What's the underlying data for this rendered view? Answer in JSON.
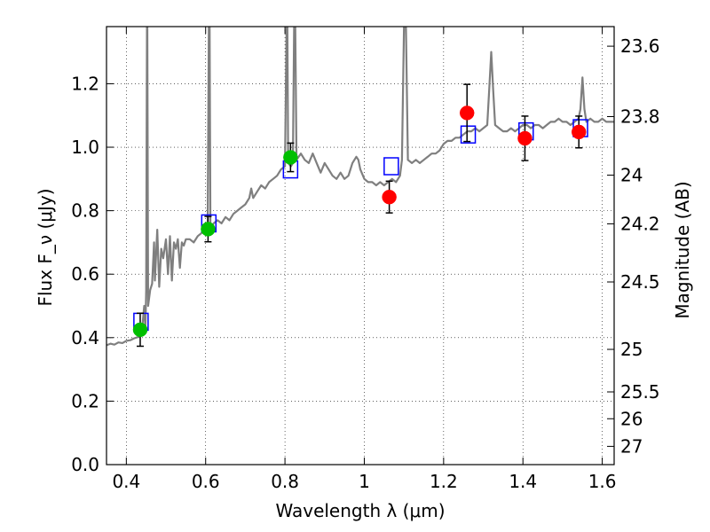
{
  "chart_data": {
    "type": "scatter",
    "xlabel": "Wavelength λ (μm)",
    "ylabel": "Flux F_ν (μJy)",
    "y2label": "Magnitude (AB)",
    "xlim": [
      0.35,
      1.63
    ],
    "ylim": [
      0.0,
      1.38
    ],
    "xticks": [
      {
        "value": 0.4,
        "label": "0.4"
      },
      {
        "value": 0.6,
        "label": "0.6"
      },
      {
        "value": 0.8,
        "label": "0.8"
      },
      {
        "value": 1.0,
        "label": "1"
      },
      {
        "value": 1.2,
        "label": "1.2"
      },
      {
        "value": 1.4,
        "label": "1.4"
      },
      {
        "value": 1.6,
        "label": "1.6"
      }
    ],
    "yticks": [
      {
        "value": 0.0,
        "label": "0.0"
      },
      {
        "value": 0.2,
        "label": "0.2"
      },
      {
        "value": 0.4,
        "label": "0.4"
      },
      {
        "value": 0.6,
        "label": "0.6"
      },
      {
        "value": 0.8,
        "label": "0.8"
      },
      {
        "value": 1.0,
        "label": "1.0"
      },
      {
        "value": 1.2,
        "label": "1.2"
      }
    ],
    "y2ticks": [
      {
        "mag": 23.6,
        "label": "23.6"
      },
      {
        "mag": 23.8,
        "label": "23.8"
      },
      {
        "mag": 24.0,
        "label": "24"
      },
      {
        "mag": 24.2,
        "label": "24.2"
      },
      {
        "mag": 24.5,
        "label": "24.5"
      },
      {
        "mag": 25.0,
        "label": "25"
      },
      {
        "mag": 25.5,
        "label": "25.5"
      },
      {
        "mag": 26.0,
        "label": "26"
      },
      {
        "mag": 27.0,
        "label": "27"
      }
    ],
    "grid": true,
    "grid_style": "dotted",
    "colors": {
      "spectrum": "#7f7f7f",
      "model_box": "#0000ff",
      "point_green": "#00bf00",
      "point_red": "#ff0000",
      "errorbar": "#000000"
    },
    "model_boxes": [
      {
        "x": 0.437,
        "y": 0.45
      },
      {
        "x": 0.608,
        "y": 0.76
      },
      {
        "x": 0.814,
        "y": 0.93
      },
      {
        "x": 1.068,
        "y": 0.94
      },
      {
        "x": 1.262,
        "y": 1.04
      },
      {
        "x": 1.408,
        "y": 1.05
      },
      {
        "x": 1.545,
        "y": 1.06
      }
    ],
    "photometry": [
      {
        "x": 0.435,
        "y": 0.425,
        "yerr": 0.052,
        "color": "green"
      },
      {
        "x": 0.606,
        "y": 0.742,
        "yerr": 0.04,
        "color": "green"
      },
      {
        "x": 0.814,
        "y": 0.968,
        "yerr": 0.045,
        "color": "green"
      },
      {
        "x": 1.063,
        "y": 0.843,
        "yerr": 0.05,
        "color": "red"
      },
      {
        "x": 1.259,
        "y": 1.108,
        "yerr": 0.09,
        "color": "red"
      },
      {
        "x": 1.405,
        "y": 1.028,
        "yerr": 0.07,
        "color": "red"
      },
      {
        "x": 1.541,
        "y": 1.048,
        "yerr": 0.05,
        "color": "red"
      }
    ],
    "spectrum": [
      [
        0.35,
        0.376
      ],
      [
        0.36,
        0.381
      ],
      [
        0.37,
        0.378
      ],
      [
        0.38,
        0.385
      ],
      [
        0.39,
        0.383
      ],
      [
        0.4,
        0.39
      ],
      [
        0.41,
        0.392
      ],
      [
        0.42,
        0.398
      ],
      [
        0.43,
        0.402
      ],
      [
        0.435,
        0.41
      ],
      [
        0.44,
        0.43
      ],
      [
        0.445,
        0.5
      ],
      [
        0.448,
        0.42
      ],
      [
        0.45,
        0.55
      ],
      [
        0.452,
        1.38
      ],
      [
        0.453,
        1.38
      ],
      [
        0.455,
        0.5
      ],
      [
        0.46,
        0.55
      ],
      [
        0.465,
        0.57
      ],
      [
        0.47,
        0.7
      ],
      [
        0.472,
        0.58
      ],
      [
        0.478,
        0.74
      ],
      [
        0.483,
        0.56
      ],
      [
        0.488,
        0.68
      ],
      [
        0.493,
        0.65
      ],
      [
        0.5,
        0.71
      ],
      [
        0.505,
        0.6
      ],
      [
        0.51,
        0.72
      ],
      [
        0.515,
        0.58
      ],
      [
        0.52,
        0.7
      ],
      [
        0.525,
        0.68
      ],
      [
        0.53,
        0.71
      ],
      [
        0.535,
        0.62
      ],
      [
        0.54,
        0.7
      ],
      [
        0.545,
        0.69
      ],
      [
        0.55,
        0.71
      ],
      [
        0.56,
        0.71
      ],
      [
        0.57,
        0.7
      ],
      [
        0.58,
        0.72
      ],
      [
        0.59,
        0.73
      ],
      [
        0.6,
        0.74
      ],
      [
        0.605,
        0.75
      ],
      [
        0.608,
        1.38
      ],
      [
        0.61,
        1.38
      ],
      [
        0.612,
        0.74
      ],
      [
        0.62,
        0.76
      ],
      [
        0.63,
        0.77
      ],
      [
        0.64,
        0.76
      ],
      [
        0.65,
        0.78
      ],
      [
        0.66,
        0.77
      ],
      [
        0.67,
        0.79
      ],
      [
        0.68,
        0.8
      ],
      [
        0.69,
        0.81
      ],
      [
        0.7,
        0.82
      ],
      [
        0.71,
        0.84
      ],
      [
        0.715,
        0.87
      ],
      [
        0.72,
        0.84
      ],
      [
        0.73,
        0.86
      ],
      [
        0.74,
        0.88
      ],
      [
        0.75,
        0.87
      ],
      [
        0.76,
        0.89
      ],
      [
        0.77,
        0.9
      ],
      [
        0.78,
        0.91
      ],
      [
        0.79,
        0.93
      ],
      [
        0.8,
        0.94
      ],
      [
        0.804,
        1.38
      ],
      [
        0.806,
        1.38
      ],
      [
        0.808,
        0.95
      ],
      [
        0.815,
        0.94
      ],
      [
        0.82,
        0.95
      ],
      [
        0.823,
        1.38
      ],
      [
        0.826,
        1.38
      ],
      [
        0.829,
        0.96
      ],
      [
        0.84,
        0.98
      ],
      [
        0.85,
        0.96
      ],
      [
        0.86,
        0.95
      ],
      [
        0.87,
        0.98
      ],
      [
        0.88,
        0.95
      ],
      [
        0.89,
        0.92
      ],
      [
        0.9,
        0.95
      ],
      [
        0.91,
        0.93
      ],
      [
        0.92,
        0.91
      ],
      [
        0.93,
        0.9
      ],
      [
        0.94,
        0.92
      ],
      [
        0.95,
        0.9
      ],
      [
        0.96,
        0.91
      ],
      [
        0.97,
        0.95
      ],
      [
        0.98,
        0.97
      ],
      [
        0.985,
        0.96
      ],
      [
        0.99,
        0.93
      ],
      [
        1.0,
        0.9
      ],
      [
        1.01,
        0.89
      ],
      [
        1.02,
        0.89
      ],
      [
        1.03,
        0.88
      ],
      [
        1.04,
        0.89
      ],
      [
        1.05,
        0.88
      ],
      [
        1.06,
        0.89
      ],
      [
        1.07,
        0.9
      ],
      [
        1.08,
        0.89
      ],
      [
        1.09,
        0.91
      ],
      [
        1.095,
        0.96
      ],
      [
        1.1,
        1.38
      ],
      [
        1.105,
        1.38
      ],
      [
        1.11,
        0.96
      ],
      [
        1.12,
        0.95
      ],
      [
        1.13,
        0.96
      ],
      [
        1.14,
        0.95
      ],
      [
        1.15,
        0.96
      ],
      [
        1.16,
        0.97
      ],
      [
        1.17,
        0.98
      ],
      [
        1.18,
        0.98
      ],
      [
        1.19,
        0.99
      ],
      [
        1.2,
        1.01
      ],
      [
        1.21,
        1.02
      ],
      [
        1.22,
        1.02
      ],
      [
        1.23,
        1.03
      ],
      [
        1.24,
        1.03
      ],
      [
        1.25,
        1.04
      ],
      [
        1.26,
        1.05
      ],
      [
        1.27,
        1.05
      ],
      [
        1.28,
        1.06
      ],
      [
        1.29,
        1.05
      ],
      [
        1.3,
        1.06
      ],
      [
        1.31,
        1.07
      ],
      [
        1.315,
        1.18
      ],
      [
        1.32,
        1.3
      ],
      [
        1.325,
        1.18
      ],
      [
        1.33,
        1.07
      ],
      [
        1.34,
        1.06
      ],
      [
        1.35,
        1.05
      ],
      [
        1.36,
        1.05
      ],
      [
        1.37,
        1.06
      ],
      [
        1.38,
        1.05
      ],
      [
        1.39,
        1.06
      ],
      [
        1.4,
        1.07
      ],
      [
        1.41,
        1.07
      ],
      [
        1.42,
        1.06
      ],
      [
        1.43,
        1.07
      ],
      [
        1.44,
        1.07
      ],
      [
        1.45,
        1.06
      ],
      [
        1.46,
        1.07
      ],
      [
        1.47,
        1.08
      ],
      [
        1.48,
        1.08
      ],
      [
        1.49,
        1.09
      ],
      [
        1.5,
        1.08
      ],
      [
        1.51,
        1.08
      ],
      [
        1.52,
        1.07
      ],
      [
        1.53,
        1.08
      ],
      [
        1.54,
        1.09
      ],
      [
        1.545,
        1.12
      ],
      [
        1.55,
        1.22
      ],
      [
        1.555,
        1.12
      ],
      [
        1.56,
        1.08
      ],
      [
        1.57,
        1.09
      ],
      [
        1.58,
        1.08
      ],
      [
        1.59,
        1.08
      ],
      [
        1.6,
        1.09
      ],
      [
        1.61,
        1.08
      ],
      [
        1.62,
        1.08
      ],
      [
        1.63,
        1.08
      ]
    ]
  }
}
